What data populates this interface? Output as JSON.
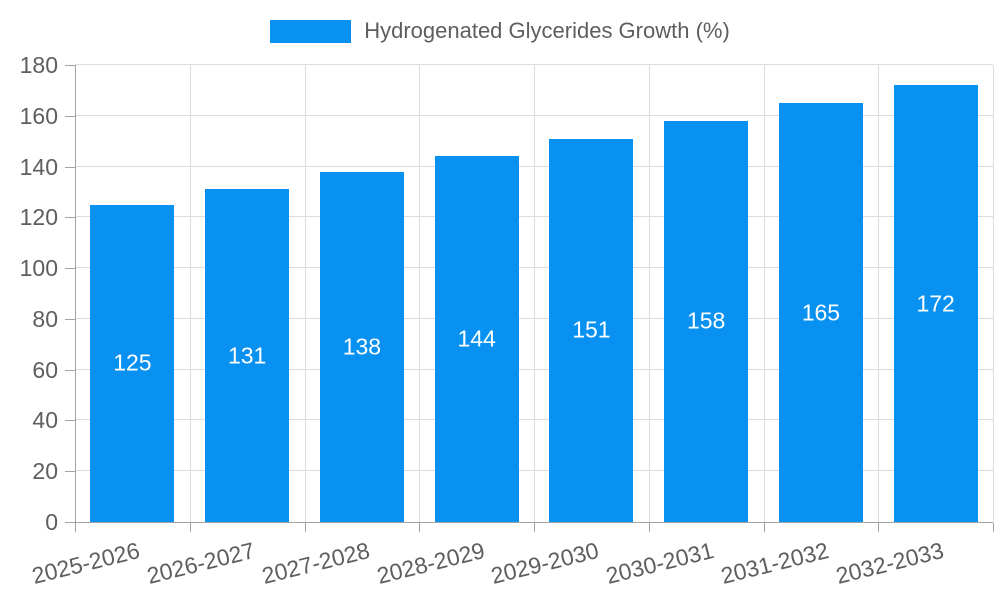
{
  "chart_data": {
    "type": "bar",
    "title": "Hydrogenated Glycerides Growth (%)",
    "categories": [
      "2025-2026",
      "2026-2027",
      "2027-2028",
      "2028-2029",
      "2029-2030",
      "2030-2031",
      "2031-2032",
      "2032-2033"
    ],
    "values": [
      125,
      131,
      138,
      144,
      151,
      158,
      165,
      172
    ],
    "xlabel": "",
    "ylabel": "",
    "ylim": [
      0,
      180
    ],
    "yticks": [
      0,
      20,
      40,
      60,
      80,
      100,
      120,
      140,
      160,
      180
    ],
    "grid": true,
    "legend_position": "top-center",
    "bar_value_labels": "inside-center",
    "colors": {
      "bar": "#0991f2",
      "bar_label": "#ffffff",
      "axis_text": "#5e5e5e",
      "grid_line": "#dcdcdc",
      "axis_line": "#a3a3a3",
      "background": "#ffffff"
    }
  },
  "legend": {
    "items": [
      {
        "label": "Hydrogenated Glycerides Growth (%)",
        "swatch_color": "#0991f2"
      }
    ]
  }
}
